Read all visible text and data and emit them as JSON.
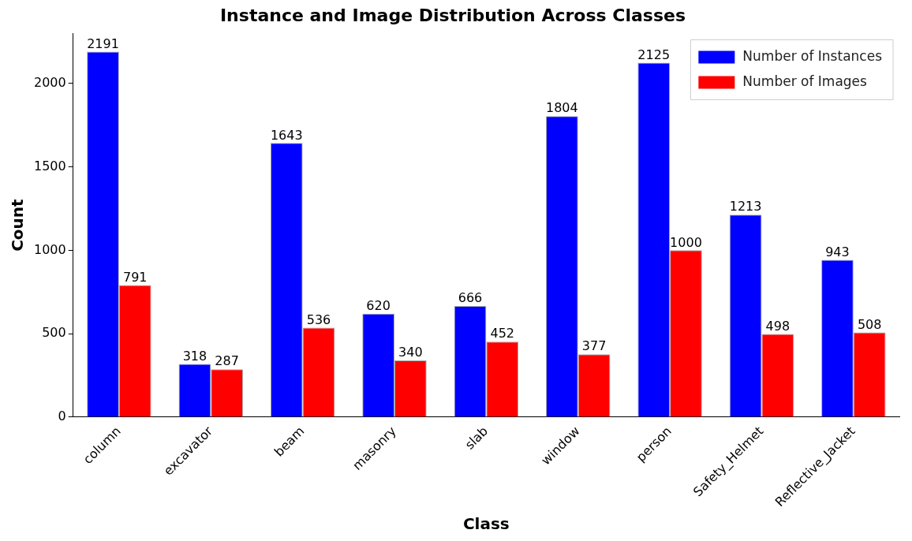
{
  "chart_data": {
    "type": "bar",
    "title": "Instance and Image Distribution Across Classes",
    "xlabel": "Class",
    "ylabel": "Count",
    "categories": [
      "column",
      "excavator",
      "beam",
      "masonry",
      "slab",
      "window",
      "person",
      "Safety_Helmet",
      "Reflective_Jacket"
    ],
    "series": [
      {
        "name": "Number of Instances",
        "color": "#0000ff",
        "values": [
          2191,
          318,
          1643,
          620,
          666,
          1804,
          2125,
          1213,
          943
        ]
      },
      {
        "name": "Number of Images",
        "color": "#ff0000",
        "values": [
          791,
          287,
          536,
          340,
          452,
          377,
          1000,
          498,
          508
        ]
      }
    ],
    "ylim": [
      0,
      2300
    ],
    "yticks": [
      0,
      500,
      1000,
      1500,
      2000
    ],
    "grid": false,
    "legend": "top right",
    "data_labels": true
  }
}
